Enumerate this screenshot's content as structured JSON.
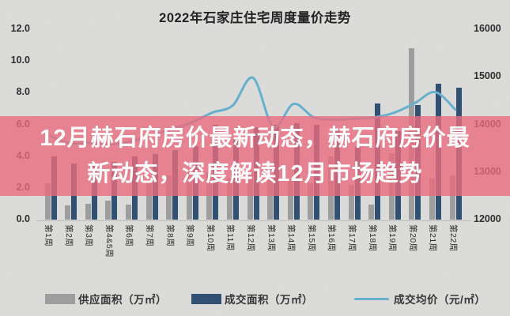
{
  "banner": {
    "line1": "12月赫石府房价最新动态，赫石府房价最",
    "line2": "新动态，深度解读12月市场趋势",
    "bg_color": "#eb6a7d",
    "text_color": "#ffffff"
  },
  "colors": {
    "background": "#dcdcda",
    "supply_bar": "#9d9d9d",
    "transaction_bar": "#2e4d70",
    "price_line": "#64b0cd",
    "title_text": "#1e1e1e"
  },
  "chart_data": {
    "type": "bar",
    "subtype": "dual-axis bar+line combo",
    "title": "2022年石家庄住宅周度量价走势",
    "categories": [
      "第1周",
      "第2周",
      "第3周",
      "第4&5周",
      "第6周",
      "第7周",
      "第8周",
      "第9周",
      "第10周",
      "第11周",
      "第12周",
      "第13周",
      "第14周",
      "第15周",
      "第16周",
      "第17周",
      "第18周",
      "第19周",
      "第20周",
      "第21周",
      "第22周"
    ],
    "series": [
      {
        "name": "供应面积（万㎡）",
        "type": "bar",
        "axis": "left",
        "color": "#9d9d9d",
        "values": [
          2.3,
          0.9,
          1.0,
          1.2,
          0.95,
          2.6,
          2.8,
          3.0,
          3.0,
          2.6,
          3.0,
          2.8,
          2.6,
          2.3,
          4.0,
          2.2,
          0.95,
          4.2,
          10.8,
          2.6,
          2.8
        ]
      },
      {
        "name": "成交面积（万㎡）",
        "type": "bar",
        "axis": "left",
        "color": "#2e4d70",
        "values": [
          4.0,
          3.55,
          3.4,
          3.65,
          4.0,
          4.15,
          4.4,
          4.65,
          6.0,
          5.1,
          5.85,
          6.0,
          6.1,
          6.0,
          5.7,
          4.6,
          7.3,
          5.6,
          7.2,
          8.55,
          8.3
        ]
      },
      {
        "name": "成交均价（元/㎡）",
        "type": "line",
        "axis": "right",
        "color": "#64b0cd",
        "values": [
          13750,
          13600,
          13620,
          13580,
          13650,
          13780,
          13900,
          14050,
          14250,
          14400,
          14980,
          13950,
          14430,
          14150,
          14100,
          14120,
          14150,
          14250,
          14450,
          14680,
          14310
        ]
      }
    ],
    "left_axis": {
      "min": 0,
      "max": 12,
      "ticks": [
        "12.0",
        "10.0",
        "8.0",
        "6.0",
        "4.0",
        "2.0",
        "0.0"
      ]
    },
    "right_axis": {
      "min": 12000,
      "max": 16000,
      "ticks": [
        "16000",
        "15000",
        "14000",
        "13000",
        "12000"
      ]
    },
    "grid": false,
    "legend_position": "bottom"
  }
}
